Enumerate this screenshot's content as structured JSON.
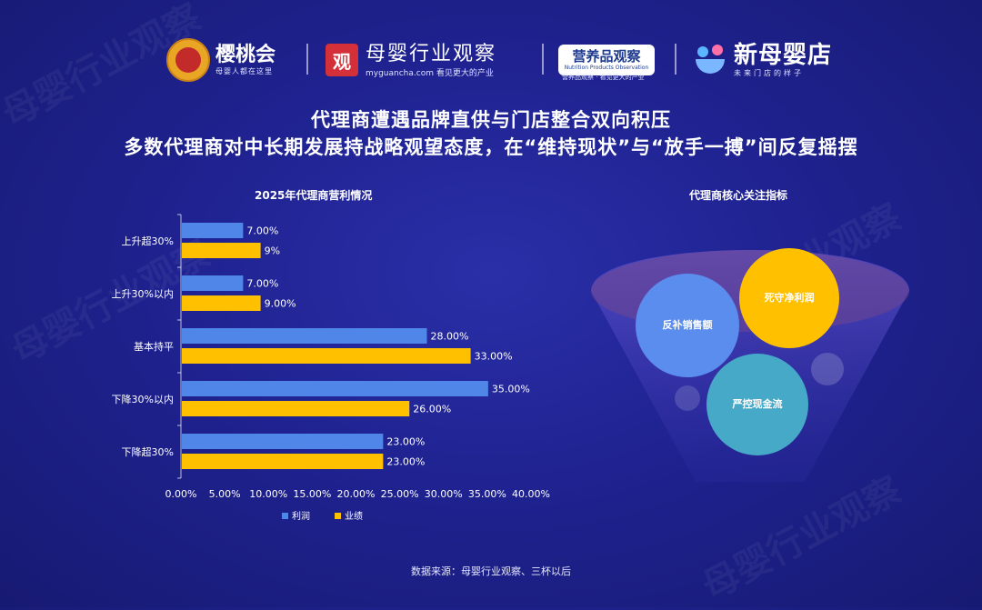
{
  "header": {
    "logos": [
      {
        "name": "樱桃会",
        "slogan": "母婴人都在这里"
      },
      {
        "name": "母婴行业观察",
        "badge": "观",
        "sub": "myguancha.com 看见更大的产业"
      },
      {
        "name": "营养品观察",
        "en": "Nutrition Products Observation",
        "sub": "营养品观察 · 看见更大的产业"
      },
      {
        "name": "新母婴店",
        "sub": "未来门店的样子"
      }
    ]
  },
  "title": {
    "line1": "代理商遭遇品牌直供与门店整合双向积压",
    "line2": "多数代理商对中长期发展持战略观望态度，在“维持现状”与“放手一搏”间反复摇摆"
  },
  "chart_data": [
    {
      "type": "bar",
      "orientation": "horizontal",
      "title": "2025年代理商营利情况",
      "categories": [
        "上升超30%",
        "上升30%以内",
        "基本持平",
        "下降30%以内",
        "下降超30%"
      ],
      "series": [
        {
          "name": "利润",
          "values": [
            7,
            7,
            28,
            35,
            23
          ],
          "labels": [
            "7.00%",
            "7.00%",
            "28.00%",
            "35.00%",
            "23.00%"
          ],
          "color": "#4f86e8"
        },
        {
          "name": "业绩",
          "values": [
            9,
            9,
            33,
            26,
            23
          ],
          "labels": [
            "9%",
            "9.00%",
            "33.00%",
            "26.00%",
            "23.00%"
          ],
          "color": "#ffc000"
        }
      ],
      "xlim": [
        0,
        40
      ],
      "xticks": [
        "0.00%",
        "5.00%",
        "10.00%",
        "15.00%",
        "20.00%",
        "25.00%",
        "30.00%",
        "35.00%",
        "40.00%"
      ],
      "legend_position": "bottom"
    },
    {
      "type": "bubble",
      "title": "代理商核心关注指标",
      "items": [
        {
          "label": "反补销售额",
          "color": "#5b8def"
        },
        {
          "label": "死守净利润",
          "color": "#ffc000"
        },
        {
          "label": "严控现金流",
          "color": "#46a9c8"
        }
      ]
    }
  ],
  "footer": {
    "source": "数据来源：母婴行业观察、三杯以后"
  },
  "colors": {
    "background": "#1f2290",
    "profit": "#4f86e8",
    "performance": "#ffc000"
  }
}
